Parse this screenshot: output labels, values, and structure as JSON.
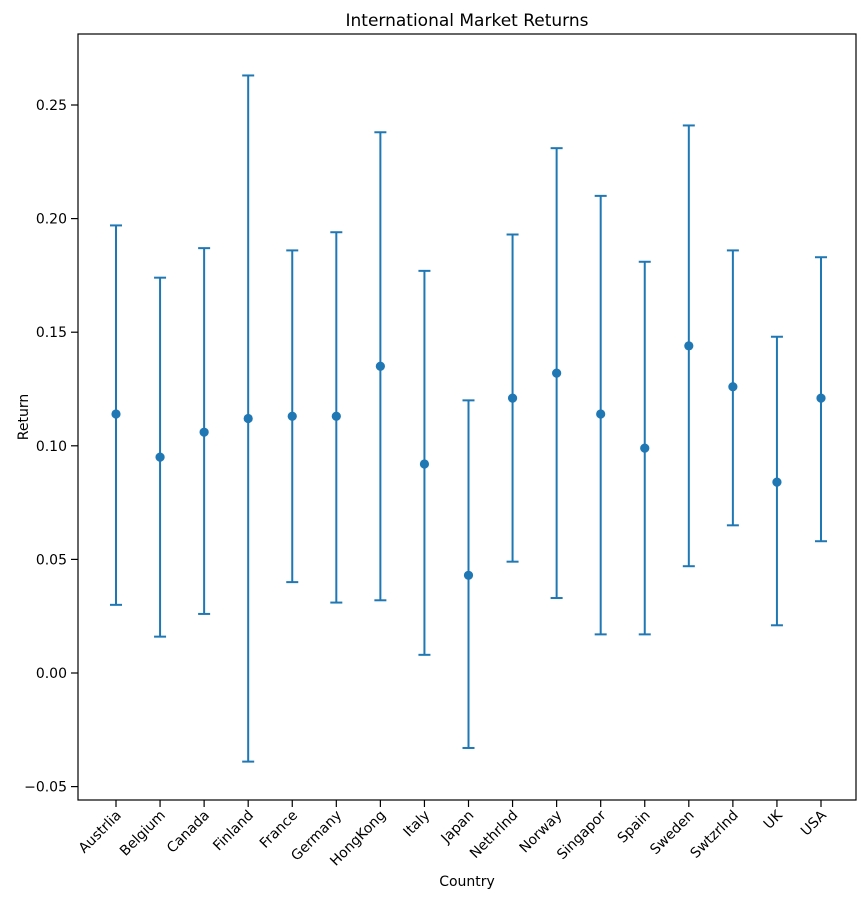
{
  "title": "International Market Returns",
  "xlabel": "Country",
  "ylabel": "Return",
  "colors": {
    "accent": "#1f77b4",
    "text": "#000000",
    "spine": "#000000",
    "background": "#ffffff"
  },
  "chart_data": {
    "type": "scatter",
    "variant": "errorbar",
    "title": "International Market Returns",
    "xlabel": "Country",
    "ylabel": "Return",
    "categories": [
      "Austrlia",
      "Belgium",
      "Canada",
      "Finland",
      "France",
      "Germany",
      "HongKong",
      "Italy",
      "Japan",
      "Nethrlnd",
      "Norway",
      "Singapor",
      "Spain",
      "Sweden",
      "Swtzrlnd",
      "UK",
      "USA"
    ],
    "series": [
      {
        "name": "Return",
        "means": [
          0.114,
          0.095,
          0.106,
          0.112,
          0.113,
          0.113,
          0.135,
          0.092,
          0.043,
          0.121,
          0.132,
          0.114,
          0.099,
          0.144,
          0.126,
          0.084,
          0.121
        ],
        "upper": [
          0.197,
          0.174,
          0.187,
          0.263,
          0.186,
          0.194,
          0.238,
          0.177,
          0.12,
          0.193,
          0.231,
          0.21,
          0.181,
          0.241,
          0.186,
          0.148,
          0.183
        ],
        "lower": [
          0.03,
          0.016,
          0.026,
          -0.039,
          0.04,
          0.031,
          0.032,
          0.008,
          -0.033,
          0.049,
          0.033,
          0.017,
          0.017,
          0.047,
          0.065,
          0.021,
          0.058
        ]
      }
    ],
    "ylim": [
      -0.056,
      0.282
    ],
    "yticks": [
      0.25,
      0.2,
      0.15,
      0.1,
      0.05,
      0.0,
      -0.05
    ],
    "ytick_labels": [
      "0.25",
      "0.20",
      "0.15",
      "0.10",
      "0.05",
      "0.00",
      "−0.05"
    ],
    "xtick_rotation_deg": 45,
    "grid": false,
    "legend": "none",
    "marker": "circle",
    "marker_color": "#1f77b4"
  }
}
